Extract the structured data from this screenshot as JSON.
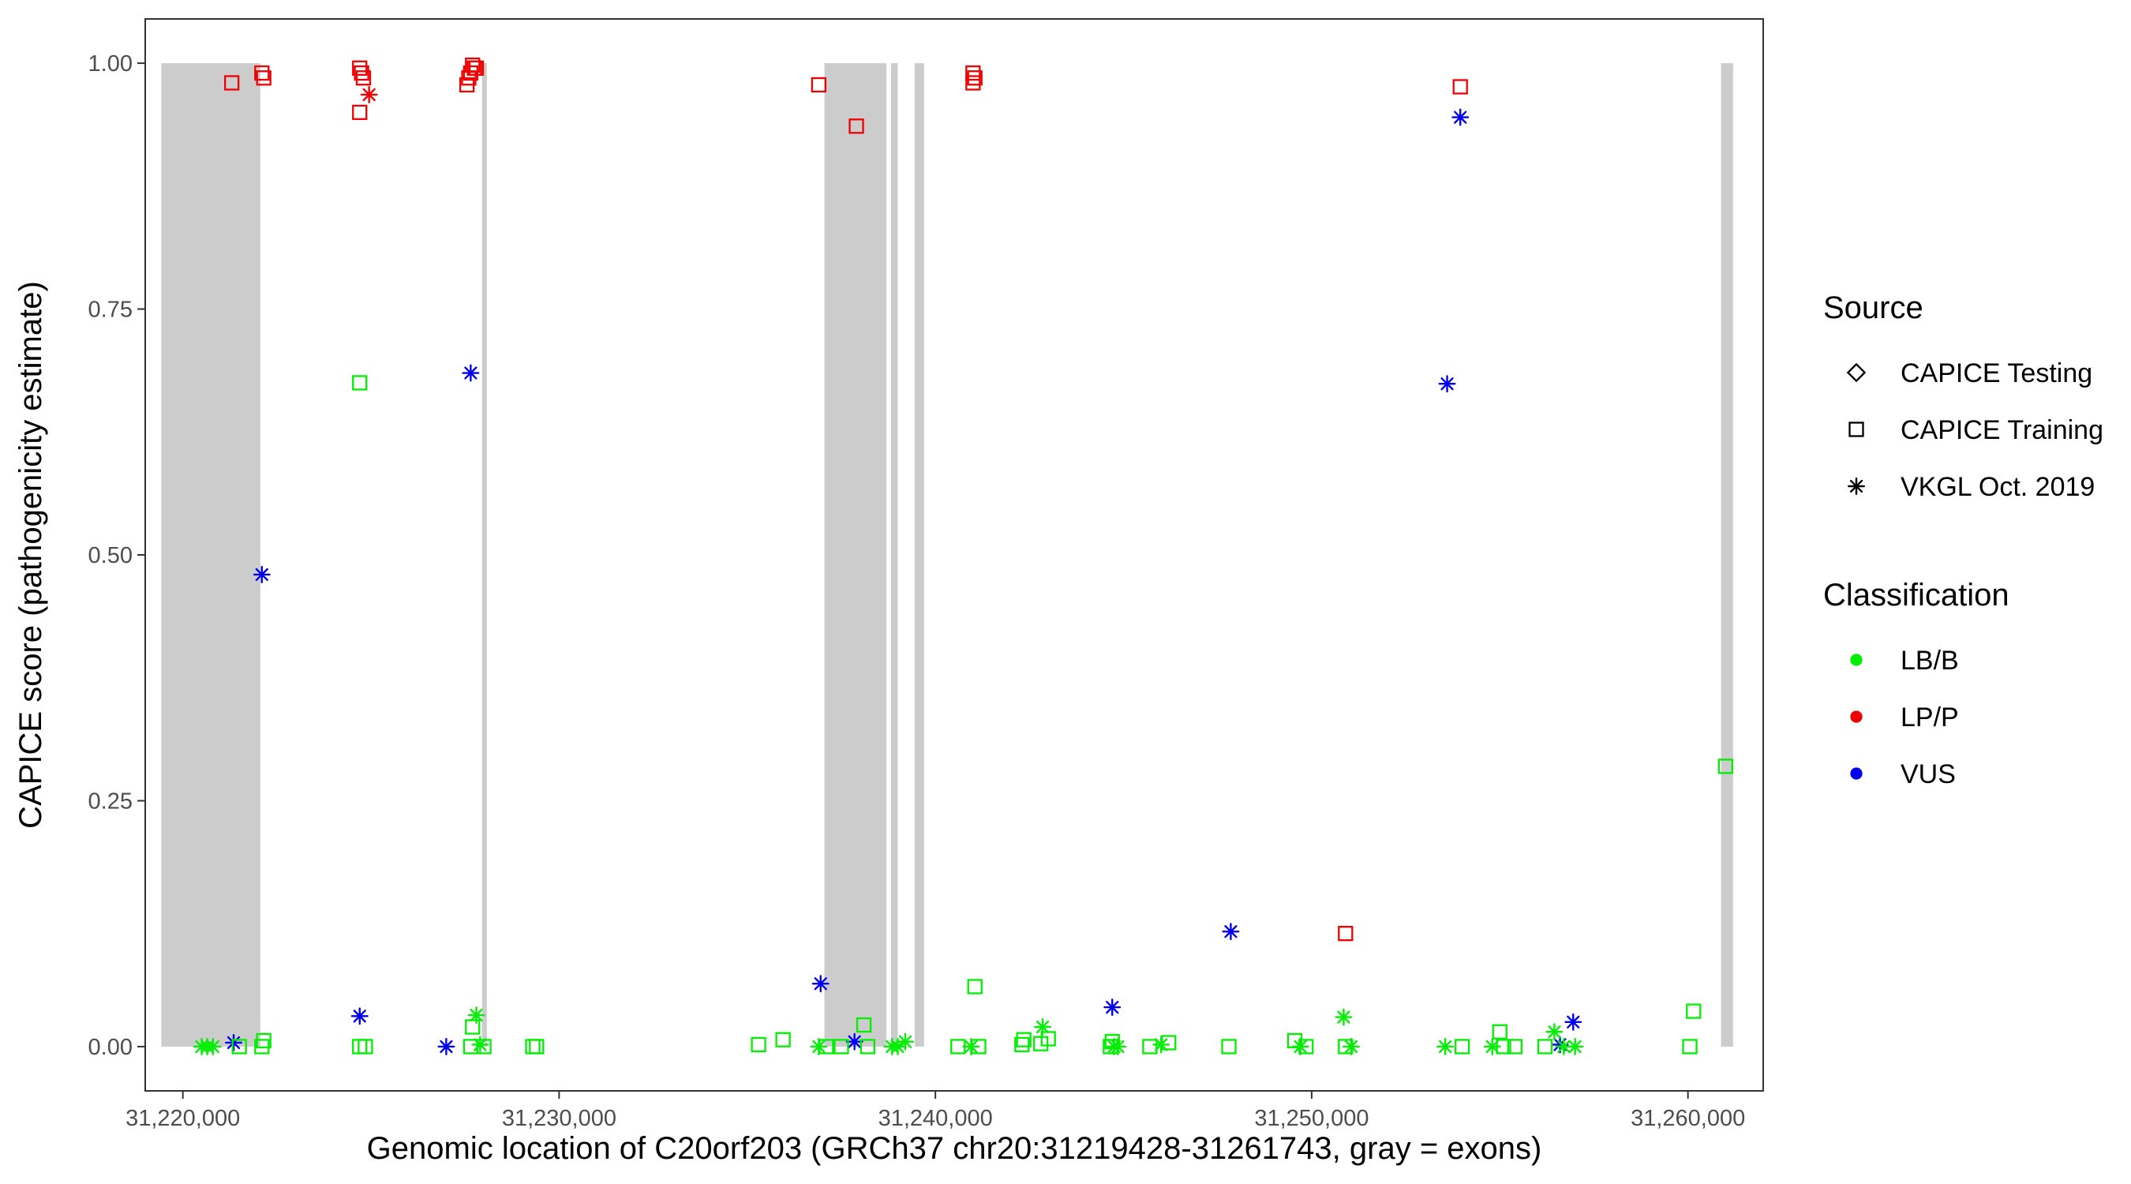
{
  "chart_data": {
    "type": "scatter",
    "title": "",
    "xlabel": "Genomic location of C20orf203 (GRCh37 chr20:31219428-31261743, gray = exons)",
    "ylabel": "CAPICE score (pathogenicity estimate)",
    "xlim": [
      31219000,
      31262000
    ],
    "ylim": [
      -0.045,
      1.045
    ],
    "x_ticks": [
      31220000,
      31230000,
      31240000,
      31250000,
      31260000
    ],
    "x_tick_labels": [
      "31,220,000",
      "31,230,000",
      "31,240,000",
      "31,250,000",
      "31,260,000"
    ],
    "y_ticks": [
      0,
      0.25,
      0.5,
      0.75,
      1.0
    ],
    "y_tick_labels": [
      "0.00",
      "0.25",
      "0.50",
      "0.75",
      "1.00"
    ],
    "grid": false,
    "legend_position": "right",
    "exons": [
      [
        31219428,
        31222060
      ],
      [
        31227950,
        31228080
      ],
      [
        31237050,
        31238700
      ],
      [
        31238820,
        31239000
      ],
      [
        31239450,
        31239700
      ],
      [
        31260880,
        31261200
      ]
    ],
    "exon_color": "#cccccc",
    "legends": [
      {
        "title": "Source",
        "items": [
          {
            "label": "CAPICE Testing",
            "shape": "diamond"
          },
          {
            "label": "CAPICE Training",
            "shape": "square"
          },
          {
            "label": "VKGL Oct. 2019",
            "shape": "asterisk"
          }
        ]
      },
      {
        "title": "Classification",
        "items": [
          {
            "label": "LB/B",
            "color": "#00ee00"
          },
          {
            "label": "LP/P",
            "color": "#ee0000"
          },
          {
            "label": "VUS",
            "color": "#0000ee"
          }
        ]
      }
    ],
    "series": [
      {
        "name": "LP/P",
        "color": "#ee0000",
        "points": [
          {
            "x": 31221300,
            "y": 0.98,
            "shape": "square"
          },
          {
            "x": 31222100,
            "y": 0.99,
            "shape": "square"
          },
          {
            "x": 31222150,
            "y": 0.985,
            "shape": "square"
          },
          {
            "x": 31224700,
            "y": 0.995,
            "shape": "square"
          },
          {
            "x": 31224750,
            "y": 0.99,
            "shape": "square"
          },
          {
            "x": 31224800,
            "y": 0.985,
            "shape": "square"
          },
          {
            "x": 31224700,
            "y": 0.95,
            "shape": "square"
          },
          {
            "x": 31224950,
            "y": 0.968,
            "shape": "asterisk"
          },
          {
            "x": 31227700,
            "y": 0.998,
            "shape": "square"
          },
          {
            "x": 31227750,
            "y": 0.995,
            "shape": "square"
          },
          {
            "x": 31227650,
            "y": 0.99,
            "shape": "square"
          },
          {
            "x": 31227600,
            "y": 0.985,
            "shape": "square"
          },
          {
            "x": 31227550,
            "y": 0.978,
            "shape": "square"
          },
          {
            "x": 31227800,
            "y": 0.995,
            "shape": "square"
          },
          {
            "x": 31236900,
            "y": 0.978,
            "shape": "square"
          },
          {
            "x": 31237900,
            "y": 0.936,
            "shape": "square"
          },
          {
            "x": 31241000,
            "y": 0.99,
            "shape": "square"
          },
          {
            "x": 31241050,
            "y": 0.985,
            "shape": "square"
          },
          {
            "x": 31241000,
            "y": 0.98,
            "shape": "square"
          },
          {
            "x": 31250900,
            "y": 0.115,
            "shape": "square"
          },
          {
            "x": 31253950,
            "y": 0.976,
            "shape": "square"
          }
        ]
      },
      {
        "name": "VUS",
        "color": "#0000ee",
        "points": [
          {
            "x": 31221350,
            "y": 0.004,
            "shape": "asterisk"
          },
          {
            "x": 31222100,
            "y": 0.48,
            "shape": "asterisk"
          },
          {
            "x": 31224700,
            "y": 0.031,
            "shape": "asterisk"
          },
          {
            "x": 31227000,
            "y": 0.0,
            "shape": "asterisk"
          },
          {
            "x": 31227650,
            "y": 0.685,
            "shape": "asterisk"
          },
          {
            "x": 31236950,
            "y": 0.064,
            "shape": "asterisk"
          },
          {
            "x": 31237850,
            "y": 0.005,
            "shape": "asterisk"
          },
          {
            "x": 31244700,
            "y": 0.04,
            "shape": "asterisk"
          },
          {
            "x": 31247850,
            "y": 0.117,
            "shape": "asterisk"
          },
          {
            "x": 31253600,
            "y": 0.674,
            "shape": "asterisk"
          },
          {
            "x": 31253950,
            "y": 0.945,
            "shape": "asterisk"
          },
          {
            "x": 31256600,
            "y": 0.002,
            "shape": "asterisk"
          },
          {
            "x": 31256950,
            "y": 0.025,
            "shape": "asterisk"
          }
        ]
      },
      {
        "name": "LB/B",
        "color": "#00ee00",
        "points": [
          {
            "x": 31220500,
            "y": 0.0,
            "shape": "asterisk"
          },
          {
            "x": 31220650,
            "y": 0.0,
            "shape": "asterisk"
          },
          {
            "x": 31220800,
            "y": 0.0,
            "shape": "asterisk"
          },
          {
            "x": 31221500,
            "y": 0.0,
            "shape": "square"
          },
          {
            "x": 31222100,
            "y": 0.0,
            "shape": "square"
          },
          {
            "x": 31222150,
            "y": 0.006,
            "shape": "square"
          },
          {
            "x": 31224700,
            "y": 0.675,
            "shape": "square"
          },
          {
            "x": 31224700,
            "y": 0.0,
            "shape": "square"
          },
          {
            "x": 31224850,
            "y": 0.0,
            "shape": "square"
          },
          {
            "x": 31227650,
            "y": 0.0,
            "shape": "square"
          },
          {
            "x": 31227700,
            "y": 0.02,
            "shape": "square"
          },
          {
            "x": 31227800,
            "y": 0.032,
            "shape": "asterisk"
          },
          {
            "x": 31227900,
            "y": 0.002,
            "shape": "asterisk"
          },
          {
            "x": 31228000,
            "y": 0.0,
            "shape": "square"
          },
          {
            "x": 31229300,
            "y": 0.0,
            "shape": "square"
          },
          {
            "x": 31229400,
            "y": 0.0,
            "shape": "square"
          },
          {
            "x": 31235300,
            "y": 0.002,
            "shape": "square"
          },
          {
            "x": 31235950,
            "y": 0.007,
            "shape": "square"
          },
          {
            "x": 31236900,
            "y": 0.0,
            "shape": "asterisk"
          },
          {
            "x": 31237100,
            "y": 0.0,
            "shape": "square"
          },
          {
            "x": 31237500,
            "y": 0.0,
            "shape": "square"
          },
          {
            "x": 31238100,
            "y": 0.022,
            "shape": "square"
          },
          {
            "x": 31238200,
            "y": 0.0,
            "shape": "square"
          },
          {
            "x": 31238850,
            "y": 0.0,
            "shape": "asterisk"
          },
          {
            "x": 31239000,
            "y": 0.0,
            "shape": "asterisk"
          },
          {
            "x": 31239200,
            "y": 0.005,
            "shape": "asterisk"
          },
          {
            "x": 31240600,
            "y": 0.0,
            "shape": "square"
          },
          {
            "x": 31241050,
            "y": 0.061,
            "shape": "square"
          },
          {
            "x": 31240950,
            "y": 0.0,
            "shape": "asterisk"
          },
          {
            "x": 31241150,
            "y": 0.0,
            "shape": "square"
          },
          {
            "x": 31242300,
            "y": 0.002,
            "shape": "square"
          },
          {
            "x": 31242350,
            "y": 0.007,
            "shape": "square"
          },
          {
            "x": 31242800,
            "y": 0.003,
            "shape": "square"
          },
          {
            "x": 31242850,
            "y": 0.02,
            "shape": "asterisk"
          },
          {
            "x": 31243000,
            "y": 0.008,
            "shape": "square"
          },
          {
            "x": 31244650,
            "y": 0.0,
            "shape": "square"
          },
          {
            "x": 31244700,
            "y": 0.005,
            "shape": "square"
          },
          {
            "x": 31244750,
            "y": 0.0,
            "shape": "asterisk"
          },
          {
            "x": 31244850,
            "y": 0.0,
            "shape": "asterisk"
          },
          {
            "x": 31245700,
            "y": 0.0,
            "shape": "square"
          },
          {
            "x": 31246000,
            "y": 0.002,
            "shape": "asterisk"
          },
          {
            "x": 31246200,
            "y": 0.004,
            "shape": "square"
          },
          {
            "x": 31247800,
            "y": 0.0,
            "shape": "square"
          },
          {
            "x": 31249550,
            "y": 0.006,
            "shape": "square"
          },
          {
            "x": 31249700,
            "y": 0.0,
            "shape": "asterisk"
          },
          {
            "x": 31249850,
            "y": 0.0,
            "shape": "square"
          },
          {
            "x": 31250850,
            "y": 0.03,
            "shape": "asterisk"
          },
          {
            "x": 31250900,
            "y": 0.0,
            "shape": "square"
          },
          {
            "x": 31251050,
            "y": 0.0,
            "shape": "asterisk"
          },
          {
            "x": 31253550,
            "y": 0.0,
            "shape": "asterisk"
          },
          {
            "x": 31254000,
            "y": 0.0,
            "shape": "square"
          },
          {
            "x": 31254800,
            "y": 0.0,
            "shape": "asterisk"
          },
          {
            "x": 31255000,
            "y": 0.015,
            "shape": "square"
          },
          {
            "x": 31255100,
            "y": 0.0,
            "shape": "square"
          },
          {
            "x": 31255400,
            "y": 0.0,
            "shape": "square"
          },
          {
            "x": 31256200,
            "y": 0.0,
            "shape": "square"
          },
          {
            "x": 31256450,
            "y": 0.015,
            "shape": "asterisk"
          },
          {
            "x": 31256700,
            "y": 0.0,
            "shape": "asterisk"
          },
          {
            "x": 31257000,
            "y": 0.0,
            "shape": "asterisk"
          },
          {
            "x": 31260050,
            "y": 0.0,
            "shape": "square"
          },
          {
            "x": 31260150,
            "y": 0.036,
            "shape": "square"
          },
          {
            "x": 31261000,
            "y": 0.285,
            "shape": "square"
          }
        ]
      }
    ]
  }
}
